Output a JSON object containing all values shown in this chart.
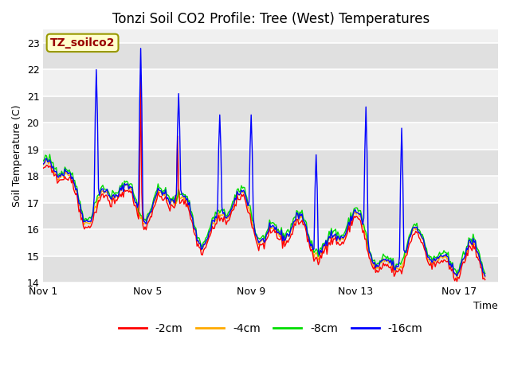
{
  "title": "Tonzi Soil CO2 Profile: Tree (West) Temperatures",
  "ylabel": "Soil Temperature (C)",
  "xlabel": "Time",
  "site_label": "TZ_soilco2",
  "ylim": [
    14.0,
    23.5
  ],
  "yticks": [
    14.0,
    15.0,
    16.0,
    17.0,
    18.0,
    19.0,
    20.0,
    21.0,
    22.0,
    23.0
  ],
  "xtick_labels": [
    "Nov 1",
    "Nov 5",
    "Nov 9",
    "Nov 13",
    "Nov 17"
  ],
  "xtick_positions": [
    0,
    4,
    8,
    12,
    16
  ],
  "xlim": [
    0,
    17.5
  ],
  "legend_entries": [
    "-2cm",
    "-4cm",
    "-8cm",
    "-16cm"
  ],
  "line_colors": [
    "#ff0000",
    "#ffaa00",
    "#00dd00",
    "#0000ff"
  ],
  "bg_color": "#ffffff",
  "plot_bg_color_light": "#f0f0f0",
  "plot_bg_color_dark": "#e0e0e0",
  "title_fontsize": 12,
  "label_fontsize": 9,
  "tick_fontsize": 9,
  "legend_fontsize": 10,
  "site_label_fontsize": 10
}
